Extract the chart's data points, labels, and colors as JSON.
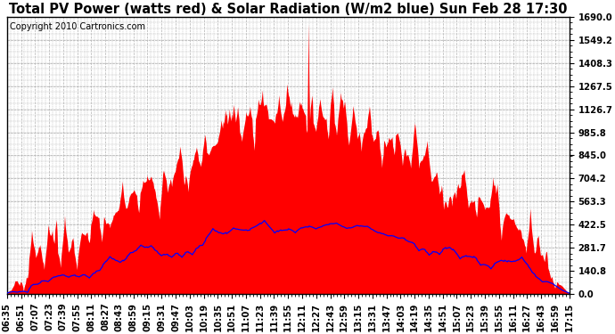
{
  "title": "Total PV Power (watts red) & Solar Radiation (W/m2 blue) Sun Feb 28 17:30",
  "copyright": "Copyright 2010 Cartronics.com",
  "yticks": [
    0.0,
    140.8,
    281.7,
    422.5,
    563.3,
    704.2,
    845.0,
    985.8,
    1126.7,
    1267.5,
    1408.3,
    1549.2,
    1690.0
  ],
  "ymax": 1690.0,
  "ymin": 0.0,
  "xtick_labels": [
    "06:35",
    "06:51",
    "07:07",
    "07:23",
    "07:39",
    "07:55",
    "08:11",
    "08:27",
    "08:43",
    "08:59",
    "09:15",
    "09:31",
    "09:47",
    "10:03",
    "10:19",
    "10:35",
    "10:51",
    "11:07",
    "11:23",
    "11:39",
    "11:55",
    "12:11",
    "12:27",
    "12:43",
    "12:59",
    "13:15",
    "13:31",
    "13:47",
    "14:03",
    "14:19",
    "14:35",
    "14:51",
    "15:07",
    "15:23",
    "15:39",
    "15:55",
    "16:11",
    "16:27",
    "16:43",
    "16:59",
    "17:15"
  ],
  "bg_color": "#ffffff",
  "plot_bg_color": "#ffffff",
  "red_color": "#ff0000",
  "blue_color": "#0000ff",
  "grid_color": "#b0b0b0",
  "title_fontsize": 10.5,
  "tick_fontsize": 7.2,
  "copyright_fontsize": 7
}
